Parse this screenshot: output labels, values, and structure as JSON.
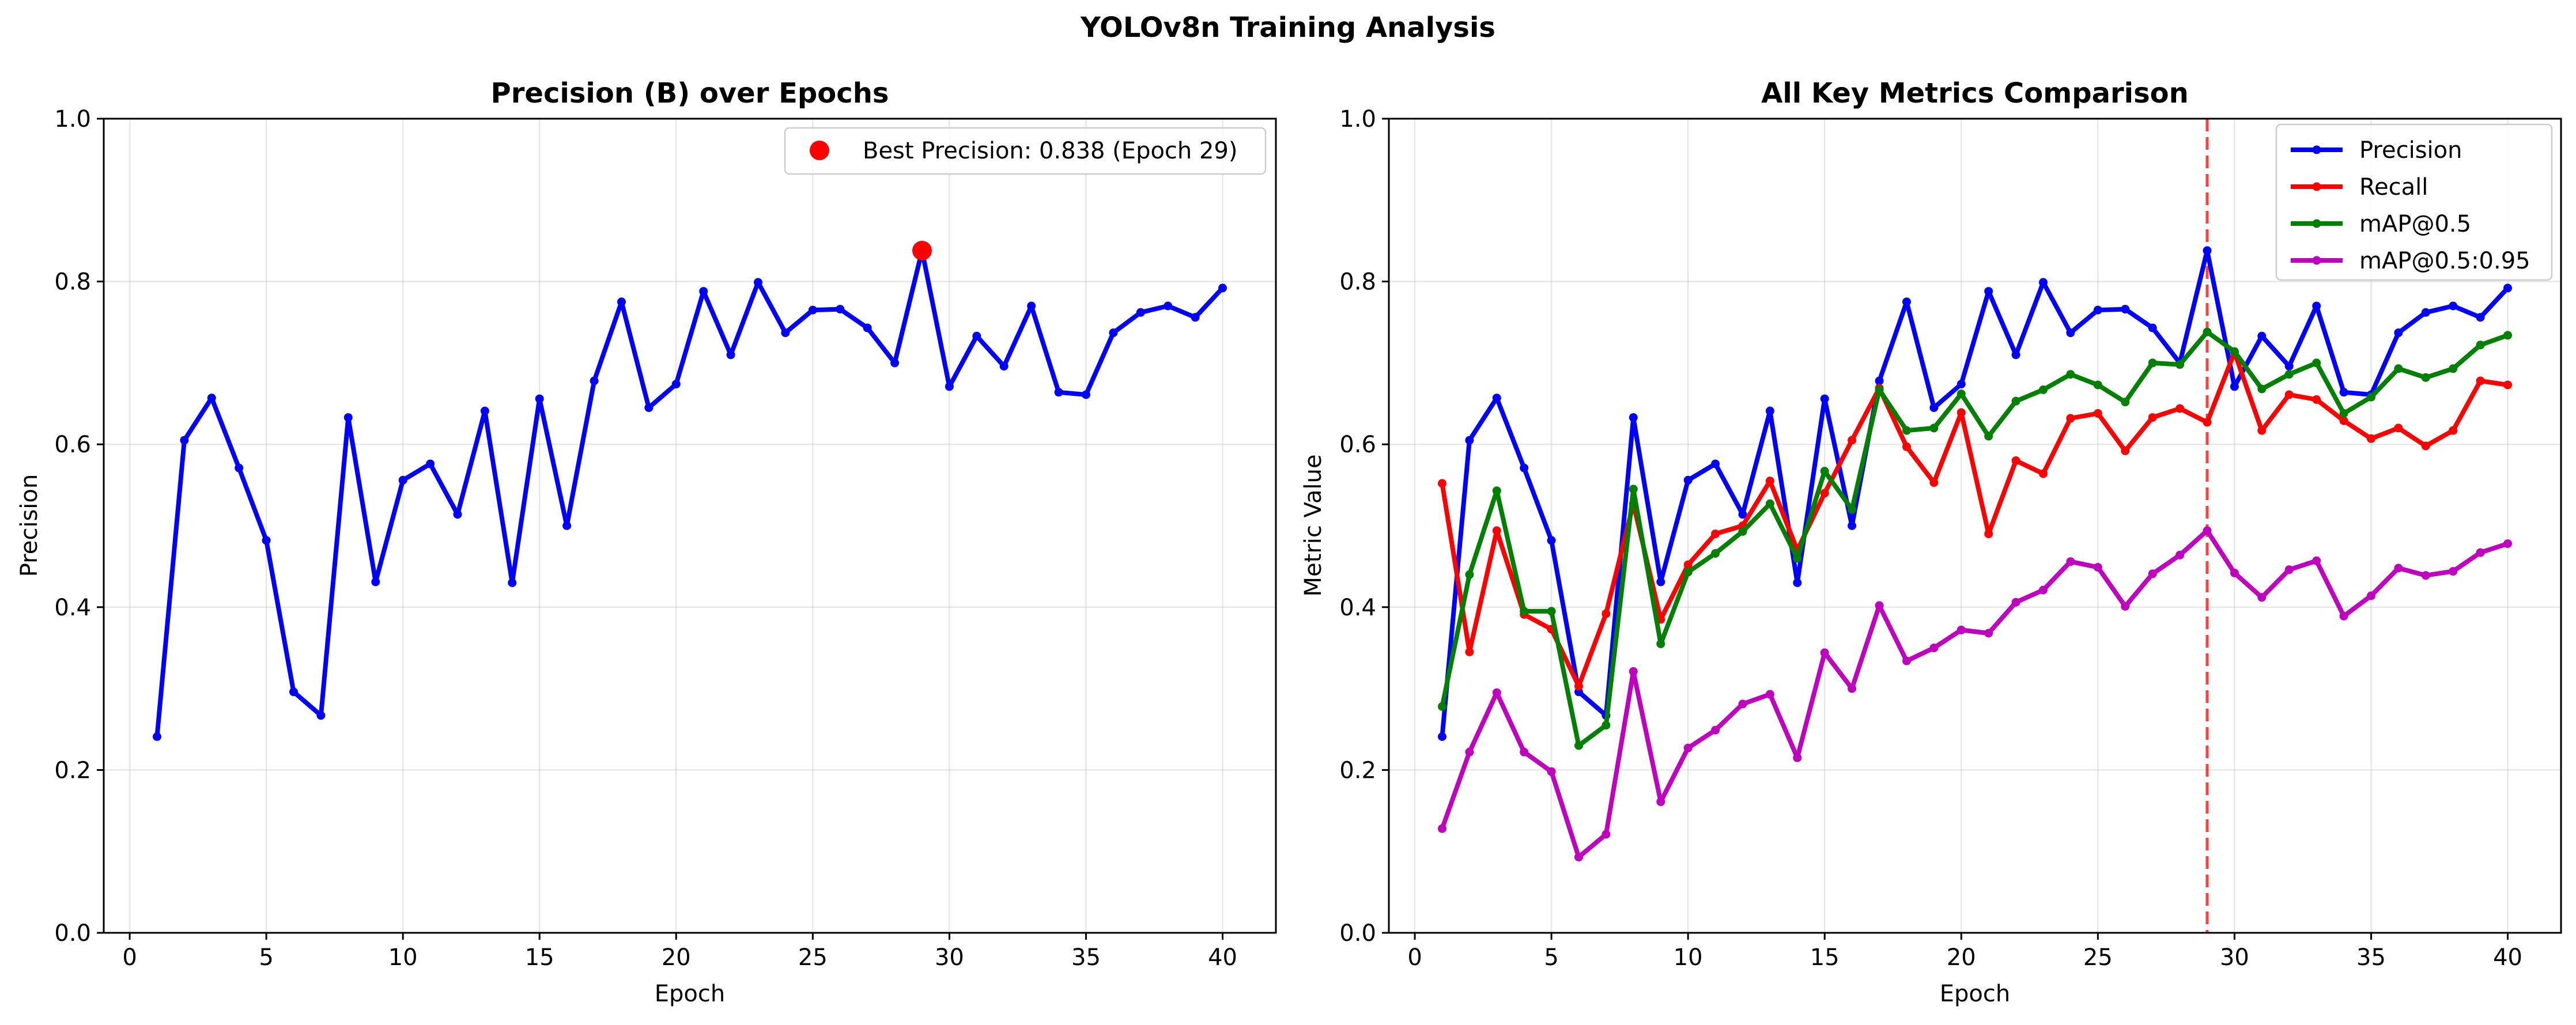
{
  "figure": {
    "suptitle": "YOLOv8n Training Analysis"
  },
  "chart_data": [
    {
      "type": "line",
      "title": "Precision (B) over Epochs",
      "xlabel": "Epoch",
      "ylabel": "Precision",
      "xlim": [
        -0.95,
        41.95
      ],
      "ylim": [
        0.0,
        1.0
      ],
      "xticks": [
        0,
        5,
        10,
        15,
        20,
        25,
        30,
        35,
        40
      ],
      "yticks": [
        0.0,
        0.2,
        0.4,
        0.6,
        0.8,
        1.0
      ],
      "grid": true,
      "legend_position": "top-right",
      "x": [
        1,
        2,
        3,
        4,
        5,
        6,
        7,
        8,
        9,
        10,
        11,
        12,
        13,
        14,
        15,
        16,
        17,
        18,
        19,
        20,
        21,
        22,
        23,
        24,
        25,
        26,
        27,
        28,
        29,
        30,
        31,
        32,
        33,
        34,
        35,
        36,
        37,
        38,
        39,
        40
      ],
      "series": [
        {
          "color": "#0000ff",
          "values": [
            0.241,
            0.605,
            0.657,
            0.571,
            0.482,
            0.296,
            0.267,
            0.633,
            0.431,
            0.556,
            0.576,
            0.514,
            0.641,
            0.43,
            0.656,
            0.5,
            0.678,
            0.775,
            0.645,
            0.674,
            0.788,
            0.71,
            0.799,
            0.737,
            0.765,
            0.766,
            0.743,
            0.7,
            0.838,
            0.671,
            0.733,
            0.696,
            0.77,
            0.664,
            0.661,
            0.737,
            0.762,
            0.77,
            0.756,
            0.792
          ]
        }
      ],
      "highlight": {
        "label": "Best Precision: 0.838 (Epoch 29)",
        "x": 29,
        "y": 0.838,
        "color": "#ff0000"
      }
    },
    {
      "type": "line",
      "title": "All Key Metrics Comparison",
      "xlabel": "Epoch",
      "ylabel": "Metric Value",
      "xlim": [
        -0.95,
        41.95
      ],
      "ylim": [
        0.0,
        1.0
      ],
      "xticks": [
        0,
        5,
        10,
        15,
        20,
        25,
        30,
        35,
        40
      ],
      "yticks": [
        0.0,
        0.2,
        0.4,
        0.6,
        0.8,
        1.0
      ],
      "grid": true,
      "legend_position": "top-right",
      "vline": {
        "x": 29,
        "color": "#ff0000",
        "style": "dashed"
      },
      "x": [
        1,
        2,
        3,
        4,
        5,
        6,
        7,
        8,
        9,
        10,
        11,
        12,
        13,
        14,
        15,
        16,
        17,
        18,
        19,
        20,
        21,
        22,
        23,
        24,
        25,
        26,
        27,
        28,
        29,
        30,
        31,
        32,
        33,
        34,
        35,
        36,
        37,
        38,
        39,
        40
      ],
      "series": [
        {
          "name": "Precision",
          "color": "#0000ff",
          "values": [
            0.241,
            0.605,
            0.657,
            0.571,
            0.482,
            0.296,
            0.267,
            0.633,
            0.431,
            0.556,
            0.576,
            0.514,
            0.641,
            0.43,
            0.656,
            0.5,
            0.678,
            0.775,
            0.645,
            0.674,
            0.788,
            0.71,
            0.799,
            0.737,
            0.765,
            0.766,
            0.743,
            0.7,
            0.838,
            0.671,
            0.733,
            0.696,
            0.77,
            0.664,
            0.661,
            0.737,
            0.762,
            0.77,
            0.756,
            0.792
          ]
        },
        {
          "name": "Recall",
          "color": "#ff0000",
          "values": [
            0.552,
            0.345,
            0.494,
            0.391,
            0.373,
            0.303,
            0.392,
            0.527,
            0.385,
            0.452,
            0.49,
            0.5,
            0.555,
            0.47,
            0.54,
            0.605,
            0.669,
            0.597,
            0.553,
            0.639,
            0.49,
            0.58,
            0.564,
            0.632,
            0.638,
            0.592,
            0.633,
            0.644,
            0.627,
            0.713,
            0.617,
            0.661,
            0.655,
            0.629,
            0.607,
            0.62,
            0.598,
            0.617,
            0.678,
            0.673
          ]
        },
        {
          "name": "mAP@0.5",
          "color": "#008000",
          "values": [
            0.278,
            0.44,
            0.543,
            0.395,
            0.395,
            0.23,
            0.255,
            0.545,
            0.355,
            0.443,
            0.466,
            0.493,
            0.527,
            0.46,
            0.567,
            0.52,
            0.667,
            0.617,
            0.62,
            0.662,
            0.61,
            0.653,
            0.667,
            0.686,
            0.673,
            0.652,
            0.7,
            0.698,
            0.738,
            0.714,
            0.668,
            0.686,
            0.7,
            0.638,
            0.658,
            0.693,
            0.682,
            0.693,
            0.722,
            0.734
          ]
        },
        {
          "name": "mAP@0.5:0.95",
          "color": "#bf00bf",
          "values": [
            0.128,
            0.222,
            0.295,
            0.222,
            0.198,
            0.093,
            0.121,
            0.321,
            0.161,
            0.227,
            0.249,
            0.281,
            0.293,
            0.215,
            0.344,
            0.3,
            0.402,
            0.334,
            0.35,
            0.372,
            0.368,
            0.406,
            0.421,
            0.456,
            0.449,
            0.401,
            0.441,
            0.464,
            0.494,
            0.442,
            0.412,
            0.446,
            0.457,
            0.389,
            0.414,
            0.448,
            0.439,
            0.444,
            0.467,
            0.478
          ]
        }
      ]
    }
  ]
}
